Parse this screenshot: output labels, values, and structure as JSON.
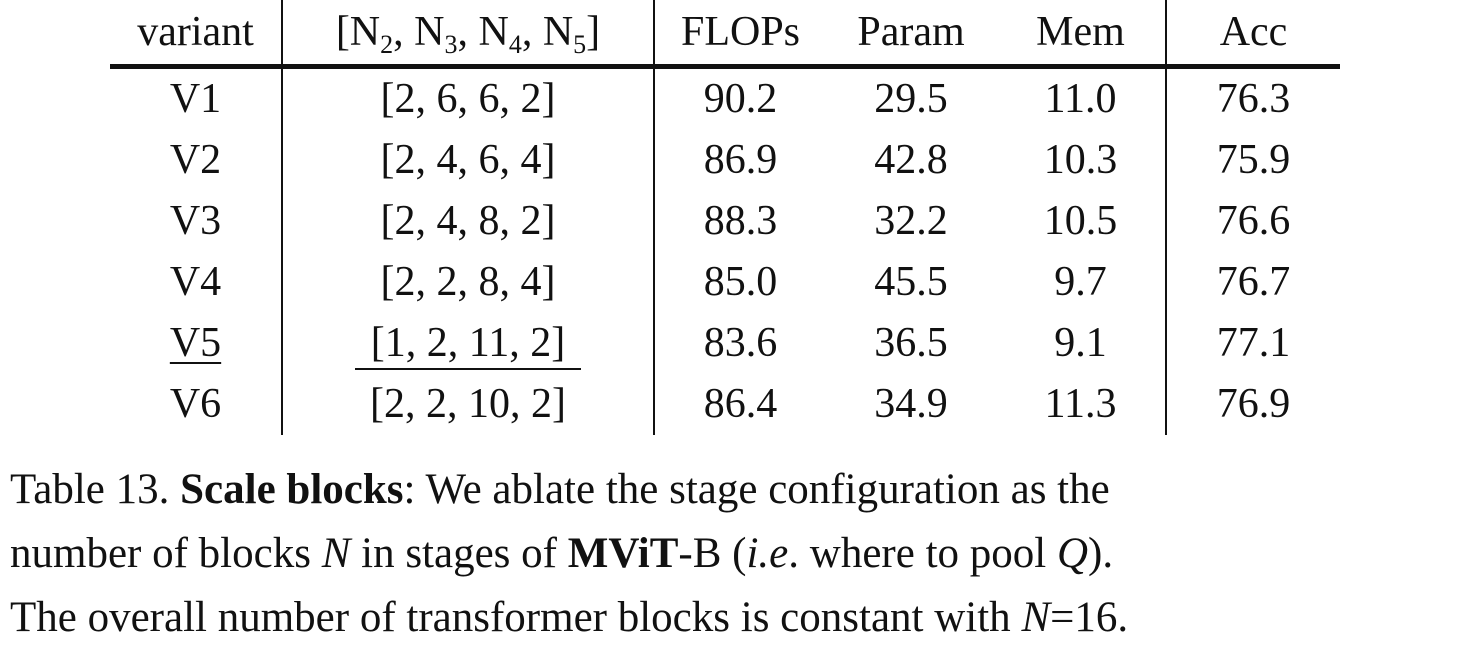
{
  "table": {
    "headers": {
      "variant": "variant",
      "config_prefix": "[N",
      "config_subs": [
        "2",
        "3",
        "4",
        "5"
      ],
      "config_suffix": "]",
      "flops": "FLOPs",
      "param": "Param",
      "mem": "Mem",
      "acc": "Acc"
    },
    "rows": [
      {
        "variant": "V1",
        "config": "[2, 6, 6, 2]",
        "flops": "90.2",
        "param": "29.5",
        "mem": "11.0",
        "acc": "76.3"
      },
      {
        "variant": "V2",
        "config": "[2, 4, 6, 4]",
        "flops": "86.9",
        "param": "42.8",
        "mem": "10.3",
        "acc": "75.9"
      },
      {
        "variant": "V3",
        "config": "[2, 4, 8, 2]",
        "flops": "88.3",
        "param": "32.2",
        "mem": "10.5",
        "acc": "76.6"
      },
      {
        "variant": "V4",
        "config": "[2, 2, 8, 4]",
        "flops": "85.0",
        "param": "45.5",
        "mem": "9.7",
        "acc": "76.7"
      },
      {
        "variant": "V5",
        "config": "[1, 2, 11, 2]",
        "flops": "83.6",
        "param": "36.5",
        "mem": "9.1",
        "acc": "77.1"
      },
      {
        "variant": "V6",
        "config": "[2, 2, 10, 2]",
        "flops": "86.4",
        "param": "34.9",
        "mem": "11.3",
        "acc": "76.9"
      }
    ]
  },
  "caption": {
    "label": "Table 13. ",
    "title": "Scale blocks",
    "line1_rest": ": We ablate the stage configuration as the",
    "line2_a": "number of blocks ",
    "line2_N": "N",
    "line2_b": " in stages of ",
    "line2_model_bold": "MViT",
    "line2_model_rest": "-B (",
    "line2_ie": "i.e",
    "line2_c": ". where to pool ",
    "line2_Q": "Q",
    "line2_d": ").",
    "line3_a": "The overall number of transformer blocks is constant with ",
    "line3_N": "N",
    "line3_b": "=16."
  }
}
